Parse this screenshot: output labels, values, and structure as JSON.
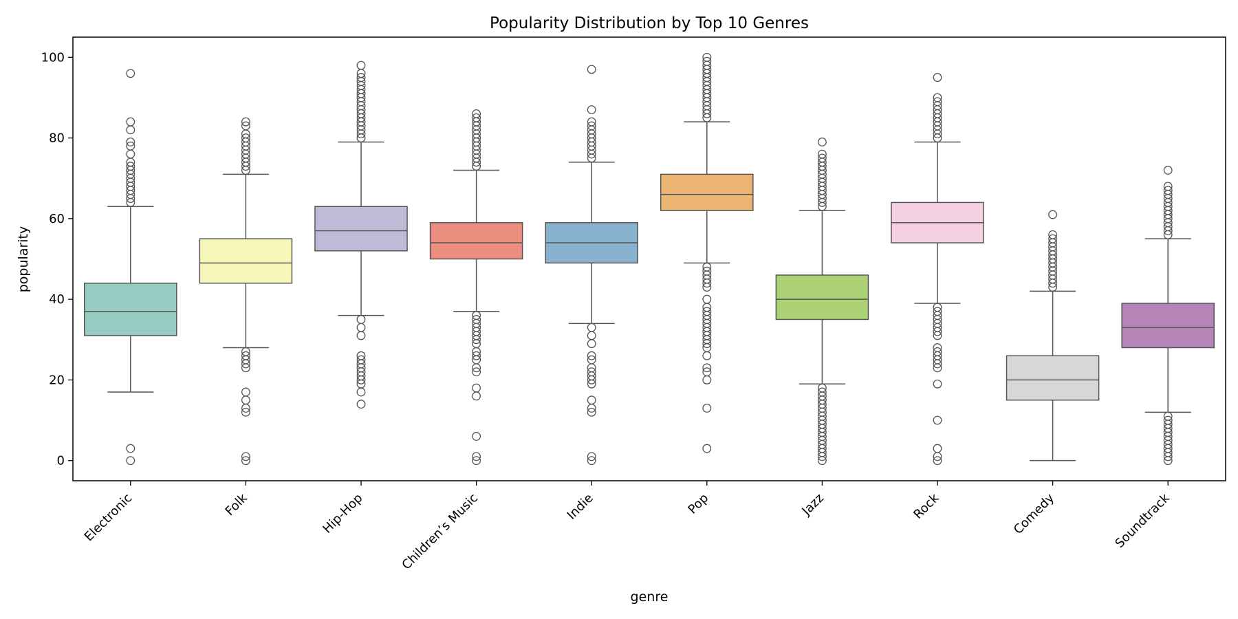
{
  "chart_data": {
    "type": "box",
    "title": "Popularity Distribution by Top 10 Genres",
    "xlabel": "genre",
    "ylabel": "popularity",
    "ylim": [
      -5,
      105
    ],
    "yticks": [
      0,
      20,
      40,
      60,
      80,
      100
    ],
    "grid": false,
    "legend": "none",
    "median_color": "#555555",
    "whisker_color": "#555555",
    "categories": [
      {
        "name": "Electronic",
        "color": "#96ccc2",
        "q1": 31,
        "median": 37,
        "q3": 44,
        "whisker_low": 17,
        "whisker_high": 63,
        "outliers_high": [
          64,
          65,
          66,
          67,
          68,
          69,
          70,
          71,
          72,
          73,
          74,
          76,
          78,
          79,
          82,
          84,
          96
        ],
        "outliers_low": [
          0,
          3
        ]
      },
      {
        "name": "Folk",
        "color": "#f7f7b9",
        "q1": 44,
        "median": 49,
        "q3": 55,
        "whisker_low": 28,
        "whisker_high": 71,
        "outliers_high": [
          72,
          73,
          74,
          75,
          76,
          77,
          78,
          79,
          80,
          81,
          83,
          84
        ],
        "outliers_low": [
          0,
          1,
          12,
          13,
          15,
          17,
          23,
          24,
          25,
          26,
          27
        ]
      },
      {
        "name": "Hip-Hop",
        "color": "#bfbad6",
        "q1": 52,
        "median": 57,
        "q3": 63,
        "whisker_low": 36,
        "whisker_high": 79,
        "outliers_high": [
          80,
          81,
          82,
          83,
          84,
          85,
          86,
          87,
          88,
          89,
          90,
          91,
          92,
          93,
          94,
          95,
          96,
          98
        ],
        "outliers_low": [
          14,
          17,
          19,
          20,
          21,
          22,
          23,
          24,
          25,
          26,
          31,
          33,
          35
        ]
      },
      {
        "name": "Children’s Music",
        "color": "#ec8e80",
        "q1": 50,
        "median": 54,
        "q3": 59,
        "whisker_low": 37,
        "whisker_high": 72,
        "outliers_high": [
          73,
          74,
          75,
          76,
          77,
          78,
          79,
          80,
          81,
          82,
          83,
          84,
          85,
          86
        ],
        "outliers_low": [
          0,
          1,
          6,
          16,
          18,
          22,
          23,
          25,
          26,
          27,
          29,
          30,
          31,
          32,
          33,
          34,
          35,
          36
        ]
      },
      {
        "name": "Indie",
        "color": "#89b2cf",
        "q1": 49,
        "median": 54,
        "q3": 59,
        "whisker_low": 34,
        "whisker_high": 74,
        "outliers_high": [
          75,
          76,
          77,
          78,
          79,
          80,
          81,
          82,
          83,
          84,
          87,
          97
        ],
        "outliers_low": [
          0,
          1,
          12,
          13,
          15,
          19,
          20,
          21,
          22,
          23,
          25,
          26,
          29,
          31,
          33
        ]
      },
      {
        "name": "Pop",
        "color": "#edb574",
        "q1": 62,
        "median": 66,
        "q3": 71,
        "whisker_low": 49,
        "whisker_high": 84,
        "outliers_high": [
          85,
          86,
          87,
          88,
          89,
          90,
          91,
          92,
          93,
          94,
          95,
          96,
          97,
          98,
          99,
          100
        ],
        "outliers_low": [
          3,
          13,
          20,
          22,
          23,
          26,
          28,
          29,
          30,
          31,
          32,
          33,
          34,
          35,
          36,
          37,
          38,
          40,
          43,
          44,
          45,
          46,
          47,
          48
        ]
      },
      {
        "name": "Jazz",
        "color": "#acd275",
        "q1": 35,
        "median": 40,
        "q3": 46,
        "whisker_low": 19,
        "whisker_high": 62,
        "outliers_high": [
          63,
          64,
          65,
          66,
          67,
          68,
          69,
          70,
          71,
          72,
          73,
          74,
          75,
          76,
          79
        ],
        "outliers_low": [
          0,
          1,
          2,
          3,
          4,
          5,
          6,
          7,
          8,
          9,
          10,
          11,
          12,
          13,
          14,
          15,
          16,
          17,
          18
        ]
      },
      {
        "name": "Rock",
        "color": "#f5d0e2",
        "q1": 54,
        "median": 59,
        "q3": 64,
        "whisker_low": 39,
        "whisker_high": 79,
        "outliers_high": [
          80,
          81,
          82,
          83,
          84,
          85,
          86,
          87,
          88,
          89,
          90,
          95
        ],
        "outliers_low": [
          0,
          1,
          3,
          10,
          19,
          23,
          24,
          25,
          26,
          27,
          28,
          31,
          32,
          33,
          34,
          35,
          36,
          37,
          38
        ]
      },
      {
        "name": "Comedy",
        "color": "#d7d7d7",
        "q1": 15,
        "median": 20,
        "q3": 26,
        "whisker_low": 0,
        "whisker_high": 42,
        "outliers_high": [
          43,
          44,
          45,
          46,
          47,
          48,
          49,
          50,
          51,
          52,
          53,
          54,
          55,
          56,
          61
        ],
        "outliers_low": []
      },
      {
        "name": "Soundtrack",
        "color": "#b784b8",
        "q1": 28,
        "median": 33,
        "q3": 39,
        "whisker_low": 12,
        "whisker_high": 55,
        "outliers_high": [
          56,
          57,
          58,
          59,
          60,
          61,
          62,
          63,
          64,
          65,
          66,
          67,
          68,
          72
        ],
        "outliers_low": [
          0,
          1,
          2,
          3,
          4,
          5,
          6,
          7,
          8,
          9,
          10,
          11
        ]
      }
    ]
  }
}
